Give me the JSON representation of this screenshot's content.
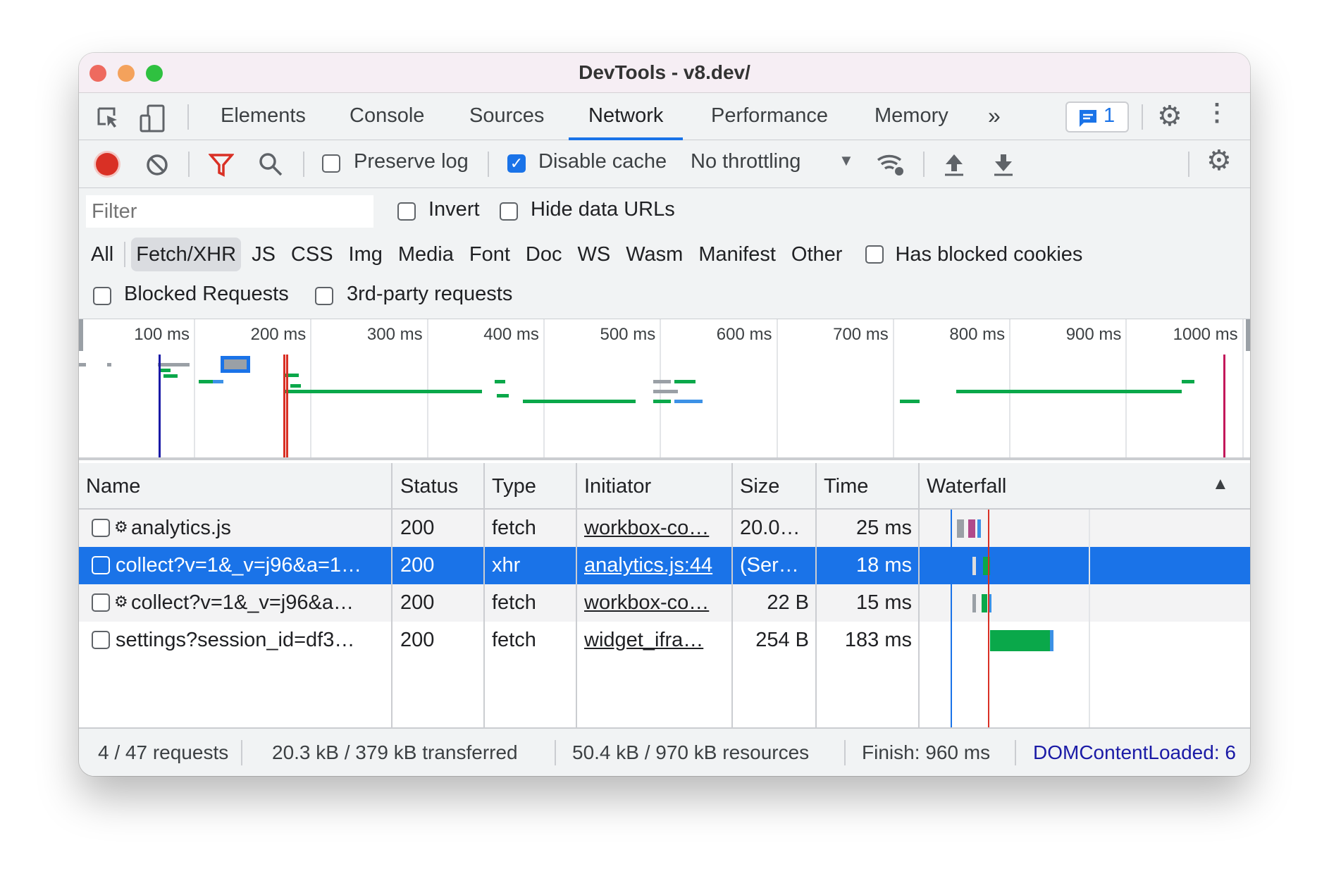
{
  "window": {
    "title": "DevTools - v8.dev/"
  },
  "tabs": [
    {
      "label": "Elements"
    },
    {
      "label": "Console"
    },
    {
      "label": "Sources"
    },
    {
      "label": "Network",
      "active": true
    },
    {
      "label": "Performance"
    },
    {
      "label": "Memory"
    }
  ],
  "more_tabs_icon": "»",
  "issues_badge": {
    "count": "1"
  },
  "toolbar": {
    "preserve_log": "Preserve log",
    "preserve_log_checked": false,
    "disable_cache": "Disable cache",
    "disable_cache_checked": true,
    "throttling": "No throttling"
  },
  "filter": {
    "placeholder": "Filter",
    "invert": "Invert",
    "hide_data_urls": "Hide data URLs"
  },
  "types": [
    "All",
    "Fetch/XHR",
    "JS",
    "CSS",
    "Img",
    "Media",
    "Font",
    "Doc",
    "WS",
    "Wasm",
    "Manifest",
    "Other"
  ],
  "selected_type": "Fetch/XHR",
  "has_blocked_cookies": "Has blocked cookies",
  "blocked_requests": "Blocked Requests",
  "third_party": "3rd-party requests",
  "overview_ticks": [
    "100 ms",
    "200 ms",
    "300 ms",
    "400 ms",
    "500 ms",
    "600 ms",
    "700 ms",
    "800 ms",
    "900 ms",
    "1000 ms"
  ],
  "columns": {
    "name": "Name",
    "status": "Status",
    "type": "Type",
    "initiator": "Initiator",
    "size": "Size",
    "time": "Time",
    "waterfall": "Waterfall"
  },
  "rows": [
    {
      "name": "analytics.js",
      "gear": true,
      "status": "200",
      "type": "fetch",
      "initiator": "workbox-co…",
      "size": "20.0…",
      "time": "25 ms"
    },
    {
      "name": "collect?v=1&_v=j96&a=1…",
      "gear": false,
      "status": "200",
      "type": "xhr",
      "initiator": "analytics.js:44",
      "size": "(Ser…",
      "time": "18 ms",
      "selected": true
    },
    {
      "name": "collect?v=1&_v=j96&a…",
      "gear": true,
      "status": "200",
      "type": "fetch",
      "initiator": "workbox-co…",
      "size": "22 B",
      "time": "15 ms"
    },
    {
      "name": "settings?session_id=df3…",
      "gear": false,
      "status": "200",
      "type": "fetch",
      "initiator": "widget_ifra…",
      "size": "254 B",
      "time": "183 ms"
    }
  ],
  "status": {
    "requests": "4 / 47 requests",
    "transferred": "20.3 kB / 379 kB transferred",
    "resources": "50.4 kB / 970 kB resources",
    "finish": "Finish: 960 ms",
    "dcl": "DOMContentLoaded: 6"
  },
  "colors": {
    "accent": "#1a73e8",
    "dcl": "#1a1aa6",
    "load": "#d93025",
    "bar_green": "#0aa84a"
  }
}
